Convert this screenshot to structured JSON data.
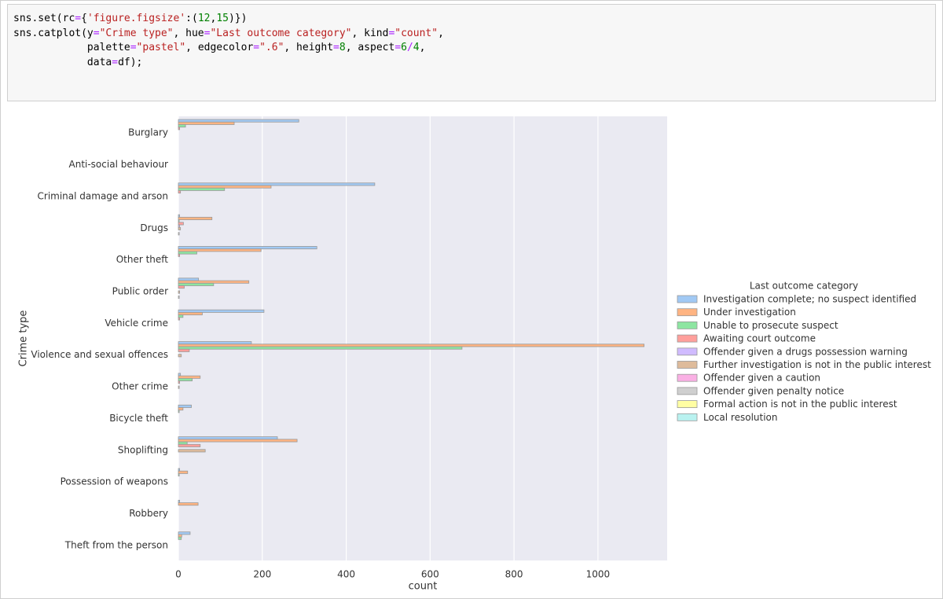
{
  "code_cell": {
    "lines": [
      [
        {
          "text": "sns.set(rc",
          "color": "#000000"
        },
        {
          "text": "=",
          "color": "#aa22ff"
        },
        {
          "text": "{",
          "color": "#000000"
        },
        {
          "text": "'figure.figsize'",
          "color": "#ba2121"
        },
        {
          "text": ":(",
          "color": "#000000"
        },
        {
          "text": "12",
          "color": "#008000"
        },
        {
          "text": ",",
          "color": "#000000"
        },
        {
          "text": "15",
          "color": "#008000"
        },
        {
          "text": ")})",
          "color": "#000000"
        }
      ],
      [
        {
          "text": "sns.catplot(y",
          "color": "#000000"
        },
        {
          "text": "=",
          "color": "#aa22ff"
        },
        {
          "text": "\"Crime type\"",
          "color": "#ba2121"
        },
        {
          "text": ", hue",
          "color": "#000000"
        },
        {
          "text": "=",
          "color": "#aa22ff"
        },
        {
          "text": "\"Last outcome category\"",
          "color": "#ba2121"
        },
        {
          "text": ", kind",
          "color": "#000000"
        },
        {
          "text": "=",
          "color": "#aa22ff"
        },
        {
          "text": "\"count\"",
          "color": "#ba2121"
        },
        {
          "text": ",",
          "color": "#000000"
        }
      ],
      [
        {
          "text": "            palette",
          "color": "#000000"
        },
        {
          "text": "=",
          "color": "#aa22ff"
        },
        {
          "text": "\"pastel\"",
          "color": "#ba2121"
        },
        {
          "text": ", edgecolor",
          "color": "#000000"
        },
        {
          "text": "=",
          "color": "#aa22ff"
        },
        {
          "text": "\".6\"",
          "color": "#ba2121"
        },
        {
          "text": ", height",
          "color": "#000000"
        },
        {
          "text": "=",
          "color": "#aa22ff"
        },
        {
          "text": "8",
          "color": "#008000"
        },
        {
          "text": ", aspect",
          "color": "#000000"
        },
        {
          "text": "=",
          "color": "#aa22ff"
        },
        {
          "text": "6",
          "color": "#008000"
        },
        {
          "text": "/",
          "color": "#aa22ff"
        },
        {
          "text": "4",
          "color": "#008000"
        },
        {
          "text": ",",
          "color": "#000000"
        }
      ],
      [
        {
          "text": "            data",
          "color": "#000000"
        },
        {
          "text": "=",
          "color": "#aa22ff"
        },
        {
          "text": "df);",
          "color": "#000000"
        }
      ]
    ]
  },
  "chart_data": {
    "type": "bar",
    "orientation": "horizontal",
    "y_label": "Crime type",
    "x_label": "count",
    "legend_title": "Last outcome category",
    "legend_position": "right",
    "categories": [
      "Burglary",
      "Anti-social behaviour",
      "Criminal damage and arson",
      "Drugs",
      "Other theft",
      "Public order",
      "Vehicle crime",
      "Violence and sexual offences",
      "Other crime",
      "Bicycle theft",
      "Shoplifting",
      "Possession of weapons",
      "Robbery",
      "Theft from the person"
    ],
    "series": [
      {
        "name": "Investigation complete; no suspect identified",
        "color": "#a1c9f4",
        "values": [
          287,
          0,
          468,
          3,
          330,
          48,
          204,
          174,
          5,
          31,
          236,
          3,
          3,
          28
        ]
      },
      {
        "name": "Under investigation",
        "color": "#ffb482",
        "values": [
          133,
          0,
          221,
          80,
          197,
          168,
          57,
          1110,
          52,
          11,
          283,
          22,
          47,
          8
        ]
      },
      {
        "name": "Unable to prosecute suspect",
        "color": "#8de5a1",
        "values": [
          17,
          0,
          110,
          2,
          44,
          84,
          11,
          676,
          33,
          2,
          21,
          2,
          0,
          7
        ]
      },
      {
        "name": "Awaiting court outcome",
        "color": "#ff9f9b",
        "values": [
          3,
          0,
          5,
          12,
          3,
          14,
          3,
          26,
          3,
          0,
          52,
          0,
          0,
          0
        ]
      },
      {
        "name": "Offender given a drugs possession warning",
        "color": "#d0bbff",
        "values": [
          0,
          0,
          0,
          3,
          0,
          0,
          0,
          0,
          0,
          0,
          0,
          0,
          0,
          0
        ]
      },
      {
        "name": "Further investigation is not in the public interest",
        "color": "#debb9b",
        "values": [
          0,
          0,
          0,
          5,
          0,
          3,
          0,
          7,
          2,
          0,
          64,
          0,
          0,
          0
        ]
      },
      {
        "name": "Offender given a caution",
        "color": "#fab0e4",
        "values": [
          0,
          0,
          0,
          0,
          0,
          0,
          0,
          0,
          0,
          0,
          0,
          0,
          0,
          0
        ]
      },
      {
        "name": "Offender given penalty notice",
        "color": "#cfcfcf",
        "values": [
          0,
          0,
          0,
          2,
          0,
          2,
          0,
          0,
          0,
          0,
          0,
          0,
          0,
          0
        ]
      },
      {
        "name": "Formal action is not in the public interest",
        "color": "#fffea3",
        "values": [
          0,
          0,
          0,
          0,
          0,
          0,
          0,
          0,
          0,
          0,
          0,
          0,
          0,
          0
        ]
      },
      {
        "name": "Local resolution",
        "color": "#b9f2f0",
        "values": [
          0,
          0,
          0,
          0,
          0,
          0,
          0,
          0,
          0,
          0,
          0,
          0,
          0,
          0
        ]
      }
    ],
    "edge_color": "#999999",
    "background": "#eaeaf2",
    "grid": true,
    "xlim": [
      0,
      1165
    ],
    "xticks": [
      0,
      200,
      400,
      600,
      800,
      1000
    ]
  }
}
